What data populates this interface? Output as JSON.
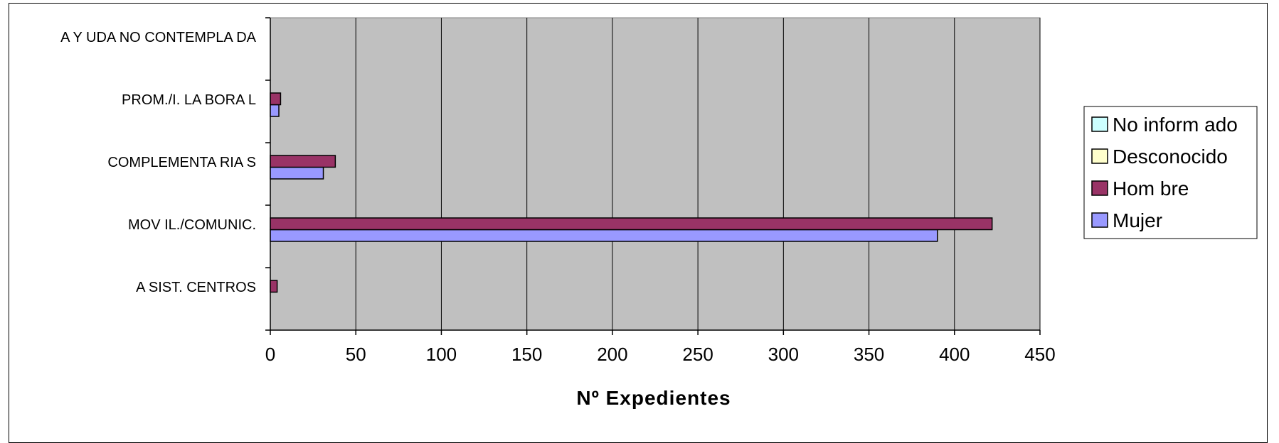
{
  "chart_data": {
    "type": "bar",
    "orientation": "horizontal",
    "categories": [
      "ASIST. CENTROS",
      "MOVIL./COMUNIC.",
      "COMPLEMENTARIAS",
      "PROM./I. LABORAL",
      "AYUDA NO CONTEMPLADA"
    ],
    "category_display": [
      "A SIST. CENTROS",
      "MOV IL./COMUNIC.",
      "COMPLEMENTA RIA S",
      "PROM./I. LA BORA L",
      "A Y UDA  NO CONTEMPLA DA"
    ],
    "series": [
      {
        "name": "Mujer",
        "display_name": "Mujer",
        "color": "#9999ff",
        "values": [
          0,
          390,
          31,
          5,
          0
        ]
      },
      {
        "name": "Hombre",
        "display_name": "Hom bre",
        "color": "#993366",
        "values": [
          4,
          422,
          38,
          6,
          0
        ]
      },
      {
        "name": "Desconocido",
        "display_name": "Desconocido",
        "color": "#ffffcc",
        "values": [
          0,
          0,
          0,
          0,
          0
        ]
      },
      {
        "name": "No informado",
        "display_name": "No inform ado",
        "color": "#ccffff",
        "values": [
          0,
          0,
          0,
          0,
          0
        ]
      }
    ],
    "legend_order": [
      "No informado",
      "Desconocido",
      "Hombre",
      "Mujer"
    ],
    "xlim": [
      0,
      450
    ],
    "xticks": [
      0,
      50,
      100,
      150,
      200,
      250,
      300,
      350,
      400,
      450
    ],
    "xlabel": "Nº Expedientes",
    "ylabel": "",
    "title": "",
    "grid": "vertical",
    "plot_background": "#c0c0c0",
    "legend_position": "right"
  }
}
